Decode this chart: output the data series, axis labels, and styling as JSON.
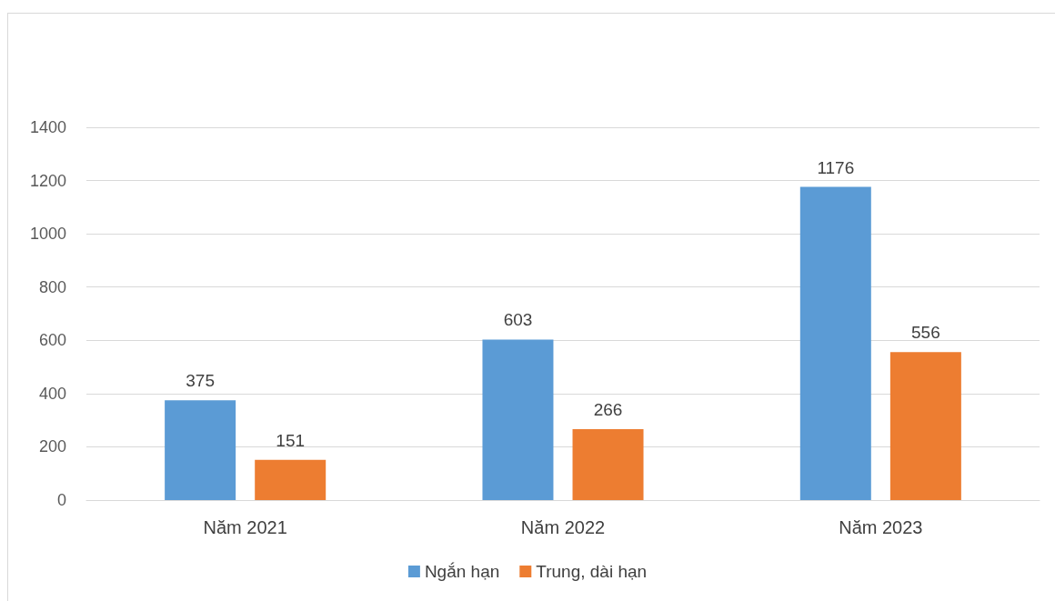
{
  "chart_data": {
    "type": "bar",
    "categories": [
      "Năm 2021",
      "Năm 2022",
      "Năm 2023"
    ],
    "series": [
      {
        "name": "Ngắn hạn",
        "color": "#5b9bd5",
        "values": [
          375,
          603,
          1176
        ]
      },
      {
        "name": "Trung, dài hạn",
        "color": "#ed7d31",
        "values": [
          151,
          266,
          556
        ]
      }
    ],
    "ylim": [
      0,
      1400
    ],
    "yticks": [
      0,
      200,
      400,
      600,
      800,
      1000,
      1200,
      1400
    ],
    "grid": "y",
    "legend": "bottom",
    "data_labels": true
  }
}
